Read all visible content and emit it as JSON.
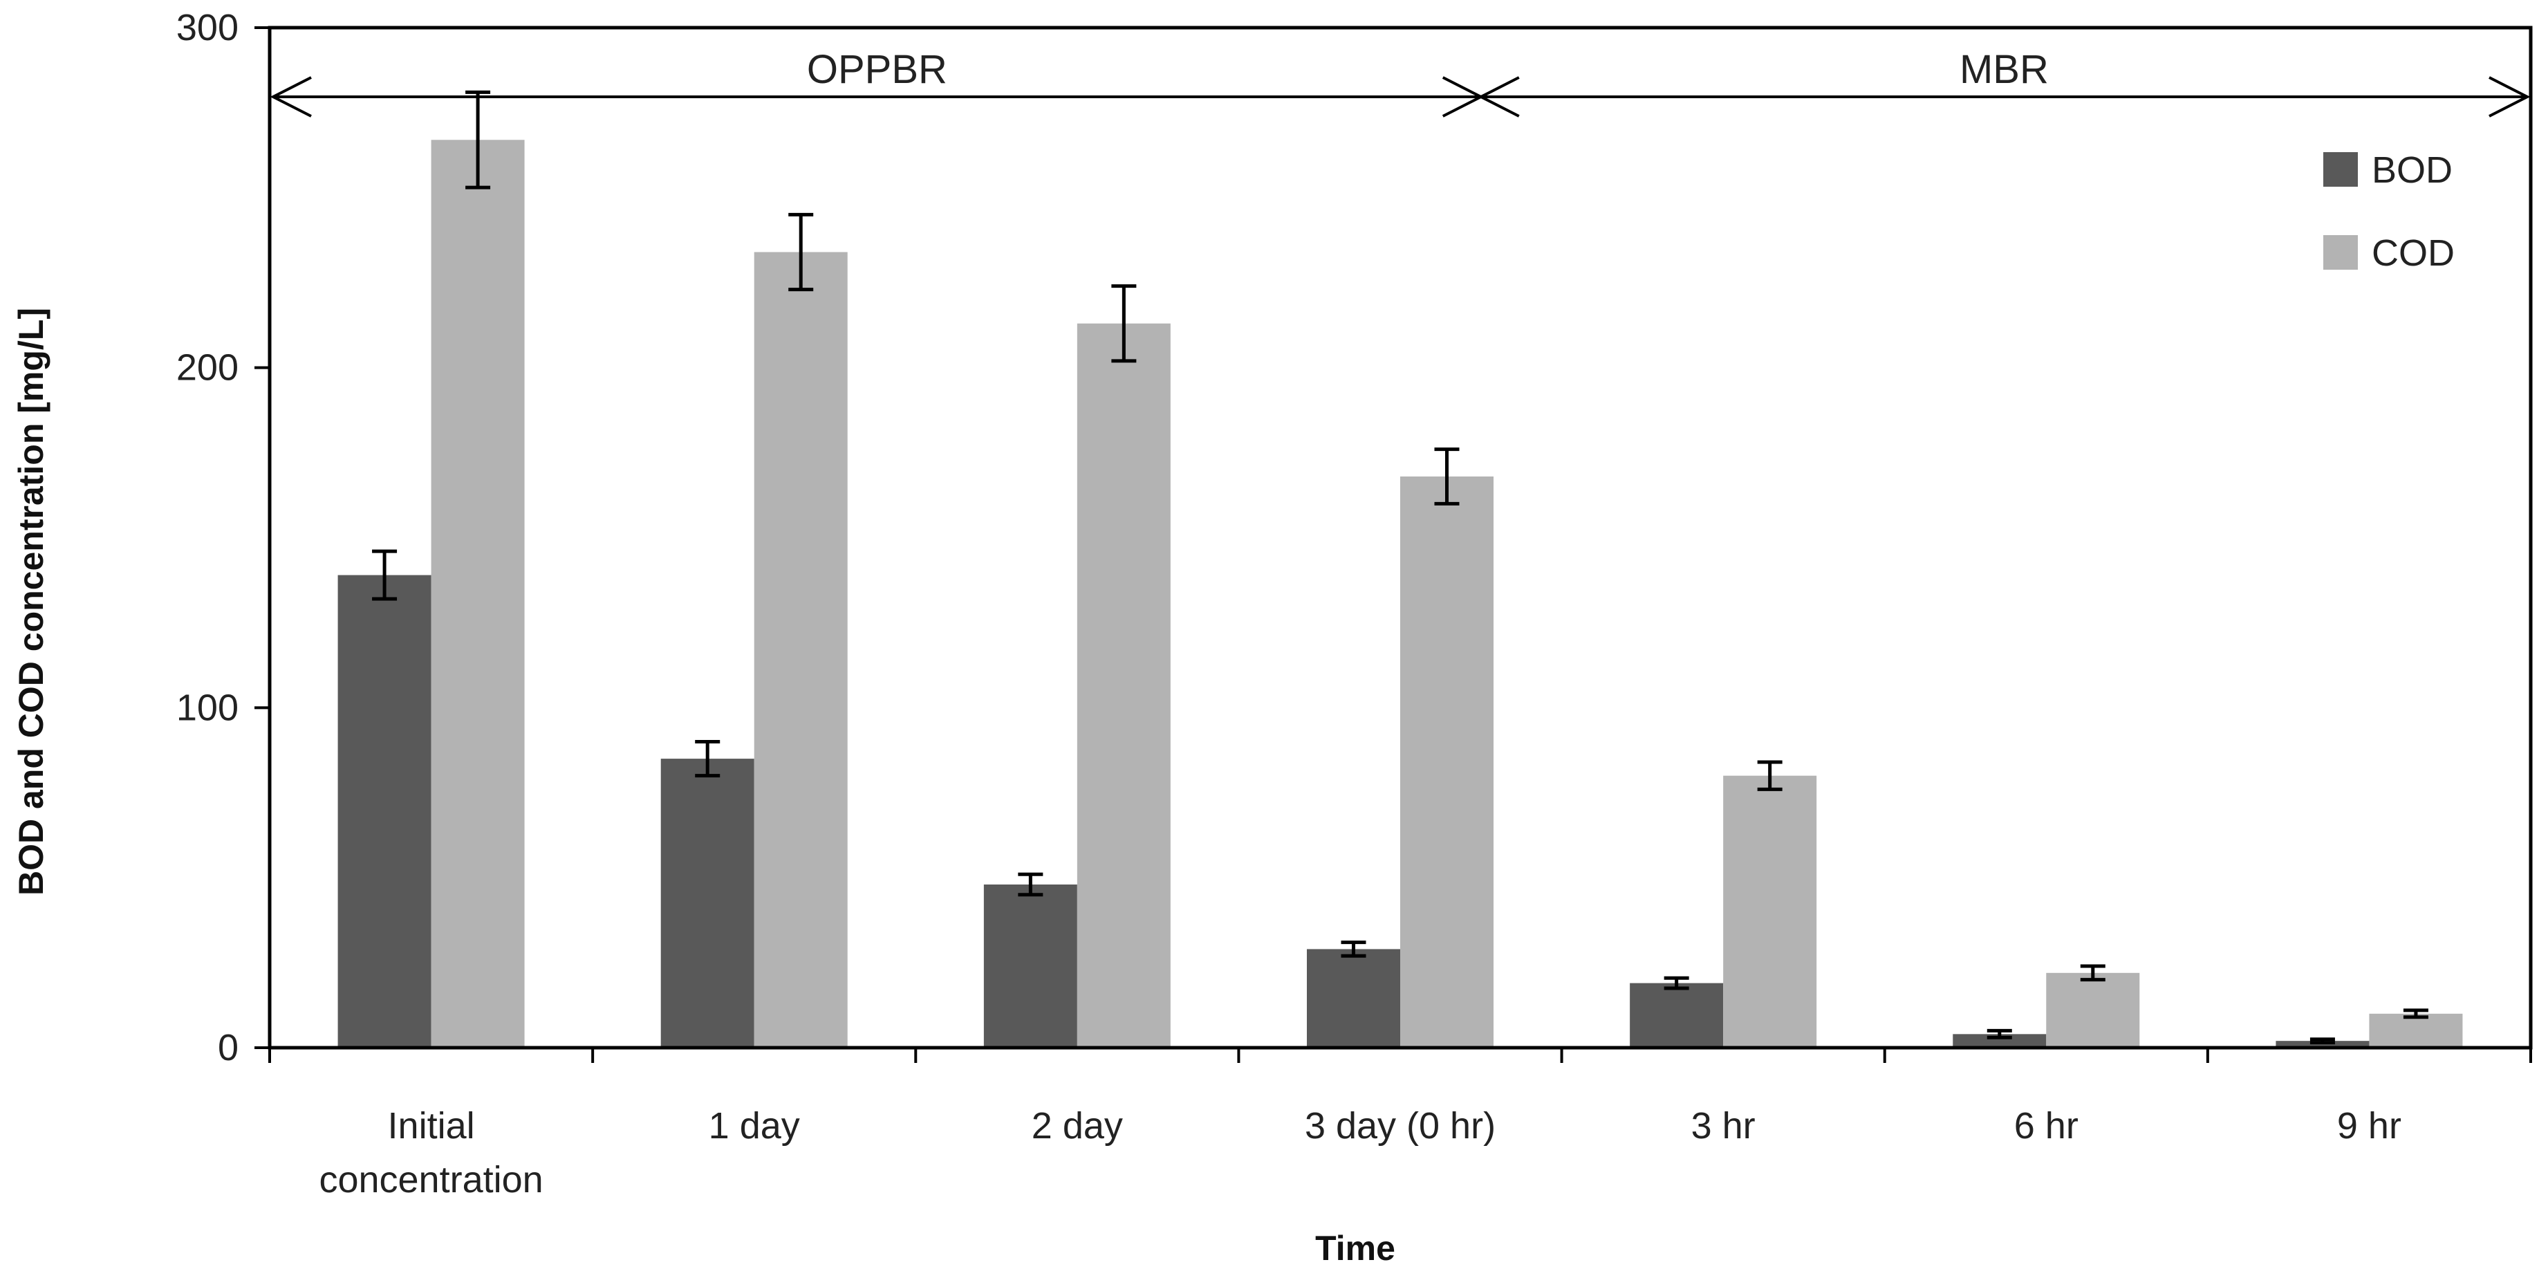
{
  "chart_data": {
    "type": "bar",
    "title": "",
    "xlabel": "Time",
    "ylabel": "BOD and COD concentration  [mg/L]",
    "ylim": [
      0,
      300
    ],
    "yticks": [
      0,
      100,
      200,
      300
    ],
    "grid": false,
    "legend_position": "top-right",
    "categories": [
      [
        "Initial",
        "concentration"
      ],
      [
        "1 day"
      ],
      [
        "2 day"
      ],
      [
        "3 day (0 hr)"
      ],
      [
        "3 hr"
      ],
      [
        "6 hr"
      ],
      [
        "9 hr"
      ]
    ],
    "series": [
      {
        "name": "BOD",
        "color": "#595959",
        "values": [
          139,
          85,
          48,
          29,
          19,
          4,
          2
        ],
        "errors": [
          7,
          5,
          3,
          2,
          1.5,
          1,
          0.5
        ]
      },
      {
        "name": "COD",
        "color": "#b3b3b3",
        "values": [
          267,
          234,
          213,
          168,
          80,
          22,
          10
        ],
        "errors": [
          14,
          11,
          11,
          8,
          4,
          2,
          1
        ]
      }
    ],
    "annotations": [
      {
        "text": "OPPBR",
        "from_category": 0,
        "to_category": 3
      },
      {
        "text": "MBR",
        "from_category": 3,
        "to_category": 6
      }
    ]
  }
}
